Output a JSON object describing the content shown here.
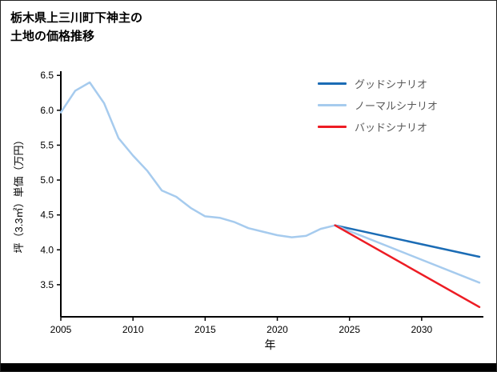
{
  "chart": {
    "title_line1": "栃木県上三川町下神主の",
    "title_line2": "土地の価格推移"
  },
  "chart_data": {
    "type": "line",
    "title": "栃木県上三川町下神主の土地の価格推移",
    "xlabel": "年",
    "ylabel": "坪（3.3㎡）単価（万円）",
    "xlim": [
      2005,
      2034
    ],
    "ylim": [
      3.04,
      6.56
    ],
    "x_ticks": [
      2005,
      2010,
      2015,
      2020,
      2025,
      2030
    ],
    "y_ticks": [
      3.5,
      4.0,
      4.5,
      5.0,
      5.5,
      6.0,
      6.5
    ],
    "grid": false,
    "legend_position": "upper right",
    "historical": {
      "color": "#a6cbee",
      "x": [
        2005,
        2006,
        2007,
        2008,
        2009,
        2010,
        2011,
        2012,
        2013,
        2014,
        2015,
        2016,
        2017,
        2018,
        2019,
        2020,
        2021,
        2022,
        2023,
        2024
      ],
      "y": [
        5.97,
        6.28,
        6.4,
        6.1,
        5.6,
        5.35,
        5.13,
        4.85,
        4.76,
        4.6,
        4.48,
        4.46,
        4.4,
        4.31,
        4.26,
        4.21,
        4.18,
        4.2,
        4.3,
        4.35
      ]
    },
    "series_future": [
      {
        "name": "グッドシナリオ",
        "color": "#1b6cb5",
        "x": [
          2024,
          2034
        ],
        "y": [
          4.35,
          3.9
        ]
      },
      {
        "name": "ノーマルシナリオ",
        "color": "#a6cbee",
        "x": [
          2024,
          2034
        ],
        "y": [
          4.35,
          3.53
        ]
      },
      {
        "name": "バッドシナリオ",
        "color": "#ed1c24",
        "x": [
          2024,
          2034
        ],
        "y": [
          4.35,
          3.18
        ]
      }
    ]
  }
}
